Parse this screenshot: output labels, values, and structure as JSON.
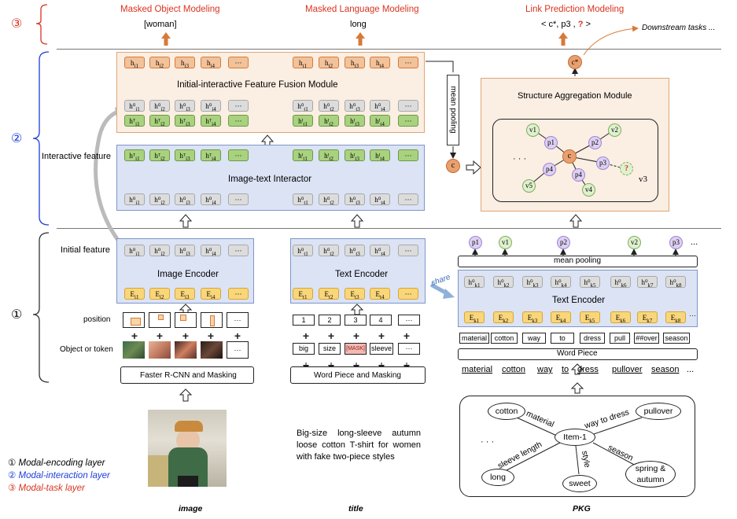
{
  "top_tasks": {
    "object": {
      "title": "Masked Object Modeling",
      "output": "[woman]"
    },
    "language": {
      "title": "Masked Language Modeling",
      "output": "long"
    },
    "link": {
      "title": "Link Prediction Modeling",
      "output_prefix": "< c*, p3 , ",
      "output_q": "?",
      "output_suffix": " >"
    },
    "downstream": "Downstream tasks ..."
  },
  "layer_markers": {
    "one": "①",
    "two": "②",
    "three": "③"
  },
  "labels": {
    "interactive_feature": "Interactive feature",
    "initial_feature": "Initial feature",
    "position": "position",
    "object_or_token": "Object or token",
    "mean_pooling_vertical": "mean pooling",
    "mean_pooling": "mean pooling",
    "share": "share",
    "word_piece_box": "Word Piece"
  },
  "modules": {
    "fusion": "Initial-interactive Feature Fusion Module",
    "interactor": "Image-text Interactor",
    "structure": "Structure Aggregation Module",
    "image_encoder": "Image Encoder",
    "text_encoder": "Text Encoder",
    "pkg_text_encoder": "Text Encoder",
    "faster_rcnn": "Faster R-CNN and Masking",
    "word_piece_masking": "Word Piece and Masking"
  },
  "tokens": {
    "fusion_top_img": [
      "h_i1",
      "h_i2",
      "h_i3",
      "h_i4",
      "···"
    ],
    "fusion_top_txt": [
      "h_t1",
      "h_t2",
      "h_t3",
      "h_t4",
      "···"
    ],
    "fusion_init_img": [
      "h⁰_i1",
      "h⁰_i2",
      "h⁰_i3",
      "h⁰_i4",
      "···"
    ],
    "fusion_init_txt": [
      "h⁰_t1",
      "h⁰_t2",
      "h⁰_t3",
      "h⁰_t4",
      "···"
    ],
    "fusion_int_img": [
      "hᵀ_i1",
      "hᵀ_i2",
      "hᵀ_i3",
      "hᵀ_i4",
      "···"
    ],
    "fusion_int_txt": [
      "hᴵ_t1",
      "hᴵ_t2",
      "hᴵ_t3",
      "hᴵ_t4",
      "···"
    ],
    "image_enc_out": [
      "h⁰_i1",
      "h⁰_i2",
      "h⁰_i3",
      "h⁰_i4",
      "···"
    ],
    "image_enc_in": [
      "E_i1",
      "E_i2",
      "E_i3",
      "E_i4",
      "···"
    ],
    "text_enc_out": [
      "h⁰_t1",
      "h⁰_t2",
      "h⁰_t3",
      "h⁰_t4",
      "···"
    ],
    "text_enc_in": [
      "E_t1",
      "E_t2",
      "E_t3",
      "E_t4",
      "···"
    ],
    "pkg_enc_out": [
      "h⁰_k1",
      "h⁰_k2",
      "h⁰_k3",
      "h⁰_k4",
      "h⁰_k5",
      "h⁰_k6",
      "h⁰_k7",
      "h⁰_k8",
      "···"
    ],
    "pkg_enc_in": [
      "E_k1",
      "E_k2",
      "E_k3",
      "E_k4",
      "E_k5",
      "E_k6",
      "E_k7",
      "E_k8",
      "···"
    ],
    "text_positions": [
      "1",
      "2",
      "3",
      "4",
      "···"
    ],
    "text_words": [
      "big",
      "size",
      "[MASK]",
      "sleeve",
      "···"
    ],
    "pkg_wordpieces": [
      "material",
      "cotton",
      "way",
      "to",
      "dress",
      "pull",
      "##over",
      "season"
    ],
    "pkg_tokens_line": [
      "material",
      "cotton",
      "way",
      "to",
      "dress",
      "pullover",
      "season",
      "..."
    ],
    "pkg_top_nodes": [
      "p1",
      "v1",
      "p2",
      "v2",
      "p3",
      "..."
    ]
  },
  "graph_nodes": {
    "center": "c",
    "v1": "v1",
    "v2": "v2",
    "v3": "v3",
    "v4": "v4",
    "v5": "v5",
    "p1": "p1",
    "p2": "p2",
    "p3": "p3",
    "p4": "p4",
    "p5": "p4",
    "q": "?",
    "dots": "· · ·",
    "c_small": "c",
    "c_star": "c*"
  },
  "pkg_graph": {
    "center": "Item-1",
    "nodes": [
      "cotton",
      "pullover",
      "long",
      "sweet",
      "spring &\nautumn"
    ],
    "edges": [
      "material",
      "way to dress",
      "sleeve length",
      "style",
      "season"
    ],
    "dots": "· · ·"
  },
  "title_text": "Big-size long-sleeve autumn loose cotton T-shirt for women with fake two-piece styles",
  "legend": [
    {
      "mark": "①",
      "text": "Modal-encoding layer",
      "color": "#000000"
    },
    {
      "mark": "②",
      "text": "Modal-interaction layer",
      "color": "#1d3ed8"
    },
    {
      "mark": "③",
      "text": "Modal-task layer",
      "color": "#d9341f"
    }
  ],
  "captions": {
    "image": "image",
    "title": "title",
    "pkg": "PKG"
  },
  "colors": {
    "red": "#d9341f",
    "blue": "#1d3ed8",
    "orange_fill": "#fbeee2",
    "blue_fill": "#dbe3f5",
    "token_orange": "#f2c29a",
    "token_green": "#a9d27f",
    "token_gray": "#dcdcdc",
    "token_yellow": "#f9d67a",
    "node_purple": "#ddd0f2",
    "node_green": "#dff0cf"
  }
}
